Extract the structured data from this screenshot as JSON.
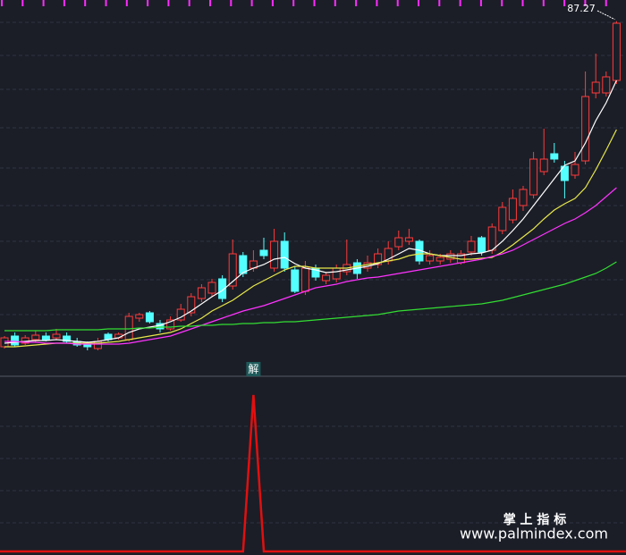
{
  "chart_data": {
    "type": "candlestick",
    "annotation": "87.27",
    "ylim": [
      12,
      92
    ],
    "yticks": [
      21.6,
      29.4,
      38,
      46,
      54.4,
      63.4,
      72,
      79.6,
      87
    ],
    "tick_labels": false,
    "grid": true,
    "up_color": "#ff3b3b",
    "down_color": "#54ffff",
    "open": [
      14.4,
      16.8,
      15.2,
      16.0,
      16.8,
      16.4,
      16.8,
      15.6,
      15.0,
      14.0,
      17.2,
      16.4,
      16.0,
      20.8,
      22.0,
      19.6,
      18.4,
      20.4,
      22.0,
      25.2,
      26.4,
      29.6,
      28.0,
      34.8,
      32.0,
      36.0,
      32.0,
      38.0,
      31.6,
      26.8,
      32.0,
      29.2,
      29.6,
      31.2,
      33.2,
      32.0,
      32.8,
      33.6,
      36.8,
      38.0,
      38.0,
      33.6,
      33.6,
      34.0,
      33.2,
      35.6,
      38.8,
      36.0,
      40.4,
      42.8,
      46.0,
      48.4,
      53.6,
      57.6,
      54.8,
      52.8,
      56.0,
      71.2,
      71.2,
      74.0
    ],
    "high": [
      16.8,
      17.6,
      17.0,
      18.0,
      17.6,
      18.4,
      17.6,
      16.4,
      15.6,
      16.4,
      17.6,
      17.6,
      22.0,
      22.0,
      22.4,
      20.4,
      21.2,
      24.0,
      26.4,
      28.4,
      29.6,
      30.4,
      38.4,
      35.6,
      36.0,
      38.8,
      40.8,
      40.0,
      32.4,
      33.6,
      32.8,
      31.2,
      32.8,
      38.4,
      34.0,
      34.8,
      36.4,
      38.0,
      40.4,
      40.8,
      38.4,
      36.0,
      35.2,
      36.0,
      36.0,
      39.2,
      39.2,
      42.0,
      46.8,
      49.6,
      50.4,
      58.0,
      63.2,
      60.0,
      56.0,
      58.0,
      76.0,
      80.0,
      76.0,
      87.27
    ],
    "low": [
      14.0,
      14.4,
      14.8,
      15.4,
      15.6,
      16.0,
      15.2,
      14.4,
      13.6,
      13.6,
      15.6,
      16.0,
      15.6,
      20.0,
      19.6,
      17.6,
      18.0,
      20.0,
      21.2,
      24.4,
      25.6,
      24.4,
      27.2,
      30.0,
      31.2,
      34.0,
      31.2,
      31.2,
      26.4,
      26.0,
      29.2,
      28.4,
      28.8,
      30.4,
      29.6,
      31.2,
      32.0,
      32.8,
      36.0,
      37.2,
      32.8,
      32.8,
      32.8,
      33.2,
      32.8,
      34.8,
      34.8,
      35.2,
      39.6,
      42.0,
      44.8,
      47.6,
      52.8,
      55.6,
      47.6,
      52.0,
      55.2,
      70.0,
      70.4,
      73.2
    ],
    "close": [
      16.4,
      14.8,
      16.4,
      17.0,
      16.0,
      17.2,
      15.6,
      14.8,
      14.4,
      15.6,
      16.0,
      17.2,
      21.2,
      21.6,
      20.0,
      18.4,
      20.4,
      22.8,
      25.6,
      27.6,
      28.8,
      25.2,
      35.2,
      30.8,
      33.6,
      34.8,
      38.0,
      32.0,
      26.8,
      32.0,
      30.0,
      30.4,
      32.0,
      32.8,
      30.8,
      33.2,
      35.2,
      36.4,
      38.8,
      38.8,
      33.6,
      34.8,
      34.4,
      35.2,
      35.2,
      38.0,
      35.6,
      41.2,
      45.6,
      47.6,
      49.6,
      56.4,
      56.4,
      56.4,
      51.6,
      55.2,
      70.4,
      73.6,
      74.8,
      86.8
    ],
    "series": [
      {
        "color": "#ffffff",
        "values": [
          15.2,
          15.4,
          15.6,
          15.8,
          15.8,
          16.0,
          15.8,
          15.6,
          15.4,
          15.6,
          16.0,
          16.4,
          17.6,
          18.4,
          18.8,
          19.2,
          20.0,
          21.0,
          22.4,
          24.0,
          25.6,
          27.0,
          29.0,
          31.0,
          32.0,
          32.8,
          34.0,
          34.4,
          33.0,
          32.0,
          31.6,
          31.0,
          31.2,
          31.6,
          32.0,
          32.4,
          33.0,
          34.0,
          35.2,
          36.4,
          36.0,
          35.2,
          34.8,
          34.8,
          34.8,
          35.2,
          35.4,
          36.0,
          38.0,
          40.4,
          43.0,
          46.0,
          49.0,
          52.0,
          55.0,
          56.0,
          60.0,
          65.0,
          69.0,
          74.0
        ]
      },
      {
        "color": "#e8e84a",
        "values": [
          14.4,
          14.4,
          14.6,
          14.8,
          15.0,
          15.2,
          15.2,
          15.2,
          15.2,
          15.2,
          15.4,
          15.6,
          16.0,
          16.4,
          16.8,
          17.2,
          17.6,
          18.4,
          19.6,
          20.8,
          22.4,
          23.6,
          24.8,
          26.4,
          28.0,
          29.2,
          30.4,
          31.6,
          32.4,
          32.4,
          32.0,
          32.0,
          32.0,
          32.0,
          32.4,
          32.8,
          33.2,
          33.6,
          34.0,
          34.8,
          35.2,
          35.2,
          34.8,
          34.4,
          34.0,
          34.0,
          34.2,
          34.4,
          35.6,
          37.2,
          39.0,
          40.8,
          43.0,
          45.0,
          46.4,
          47.6,
          50.0,
          54.0,
          58.4,
          63.0
        ]
      },
      {
        "color": "#ff33ff",
        "values": [
          15.6,
          15.6,
          15.4,
          15.4,
          15.2,
          15.2,
          15.2,
          15.0,
          15.0,
          15.0,
          15.0,
          15.0,
          15.2,
          15.6,
          16.0,
          16.4,
          16.8,
          17.6,
          18.4,
          19.2,
          20.0,
          20.8,
          21.6,
          22.4,
          23.0,
          23.6,
          24.4,
          25.2,
          26.0,
          26.8,
          27.6,
          28.0,
          28.4,
          29.0,
          29.4,
          29.8,
          30.0,
          30.4,
          30.8,
          31.2,
          31.6,
          32.0,
          32.4,
          32.8,
          33.2,
          33.6,
          34.0,
          34.6,
          35.2,
          36.0,
          37.2,
          38.4,
          39.6,
          40.8,
          42.0,
          43.0,
          44.4,
          46.0,
          48.0,
          50.0
        ]
      },
      {
        "color": "#33dd33",
        "values": [
          18.0,
          18.0,
          18.0,
          18.0,
          18.0,
          18.2,
          18.2,
          18.2,
          18.2,
          18.2,
          18.4,
          18.4,
          18.4,
          18.6,
          18.6,
          18.8,
          18.8,
          19.0,
          19.0,
          19.2,
          19.2,
          19.4,
          19.4,
          19.6,
          19.6,
          19.8,
          19.8,
          20.0,
          20.0,
          20.2,
          20.4,
          20.6,
          20.8,
          21.0,
          21.2,
          21.4,
          21.6,
          22.0,
          22.4,
          22.6,
          22.8,
          23.0,
          23.2,
          23.4,
          23.6,
          23.8,
          24.0,
          24.4,
          24.8,
          25.4,
          26.0,
          26.6,
          27.2,
          27.8,
          28.4,
          29.2,
          30.0,
          30.8,
          32.0,
          33.4
        ]
      }
    ],
    "indicator": {
      "label": "解",
      "label_index": 24,
      "color": "#e01010",
      "ylim": [
        0,
        1
      ],
      "values": [
        0,
        0,
        0,
        0,
        0,
        0,
        0,
        0,
        0,
        0,
        0,
        0,
        0,
        0,
        0,
        0,
        0,
        0,
        0,
        0,
        0,
        0,
        0,
        0,
        1,
        0,
        0,
        0,
        0,
        0,
        0,
        0,
        0,
        0,
        0,
        0,
        0,
        0,
        0,
        0,
        0,
        0,
        0,
        0,
        0,
        0,
        0,
        0,
        0,
        0,
        0,
        0,
        0,
        0,
        0,
        0,
        0,
        0,
        0,
        0
      ]
    },
    "watermark": {
      "title": "掌 上 指 标",
      "url": "www.palmindex.com"
    }
  }
}
